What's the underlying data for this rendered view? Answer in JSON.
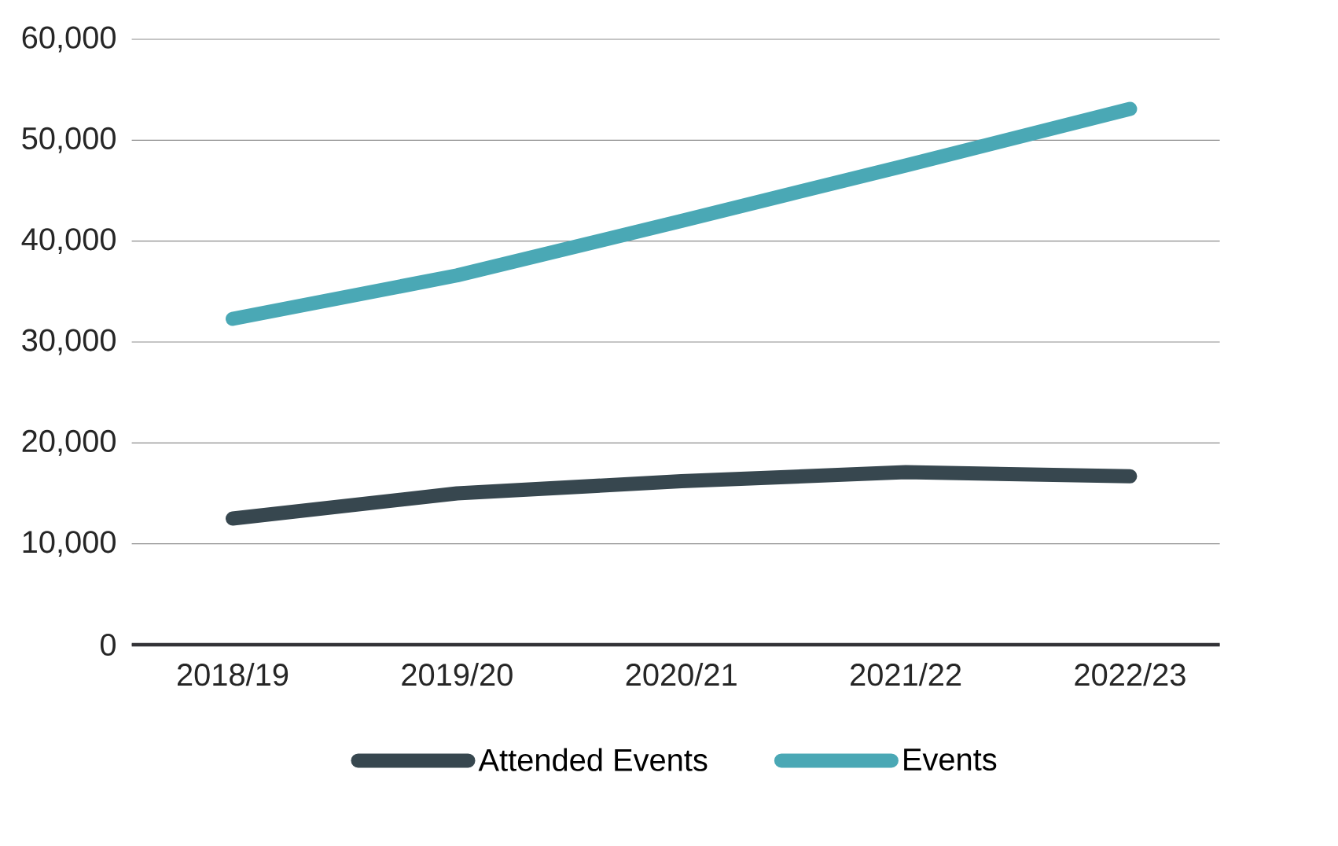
{
  "chart_data": {
    "type": "line",
    "categories": [
      "2018/19",
      "2019/20",
      "2020/21",
      "2021/22",
      "2022/23"
    ],
    "series": [
      {
        "name": "Attended Events",
        "color": "#37474f",
        "values": [
          12500,
          15000,
          16200,
          17100,
          16700
        ]
      },
      {
        "name": "Events",
        "color": "#4aa8b5",
        "values": [
          32300,
          36600,
          42000,
          47500,
          53100
        ]
      }
    ],
    "ylim": [
      0,
      60000
    ],
    "yticks": [
      {
        "value": 0,
        "label": "0"
      },
      {
        "value": 10000,
        "label": "10,000"
      },
      {
        "value": 20000,
        "label": "20,000"
      },
      {
        "value": 30000,
        "label": "30,000"
      },
      {
        "value": 40000,
        "label": "40,000"
      },
      {
        "value": 50000,
        "label": "50,000"
      },
      {
        "value": 60000,
        "label": "60,000"
      }
    ],
    "grid": "y",
    "legend": "bottom"
  }
}
